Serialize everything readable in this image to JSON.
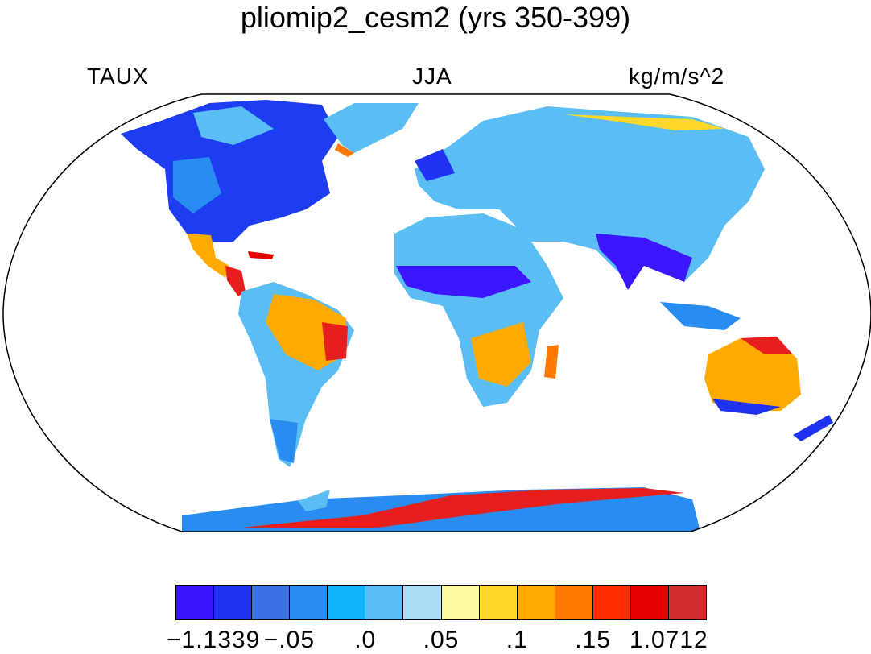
{
  "header": {
    "title": "pliomip2_cesm2 (yrs 350-399)",
    "left_label": "TAUX",
    "center_label": "JJA",
    "right_label": "kg/m/s^2"
  },
  "map": {
    "projection": "robinson",
    "land_only": true,
    "regions": [
      {
        "name": "north-america",
        "color": "#1e3cf0"
      },
      {
        "name": "greenland",
        "color": "#5abef5"
      },
      {
        "name": "central-america",
        "color": "#e61e1e"
      },
      {
        "name": "south-america",
        "color": "#ffaa00"
      },
      {
        "name": "europe-asia",
        "color": "#5abef5"
      },
      {
        "name": "africa",
        "color": "#5abef5"
      },
      {
        "name": "india-se-asia",
        "color": "#3c14ff"
      },
      {
        "name": "australia",
        "color": "#ffaa00"
      },
      {
        "name": "antarctica",
        "color": "#e61e1e"
      }
    ]
  },
  "colorbar": {
    "colors": [
      "#3a14ff",
      "#1e32f0",
      "#3c6ee6",
      "#288cf0",
      "#10b4f8",
      "#5abef5",
      "#aadcf5",
      "#fffaa0",
      "#ffd728",
      "#ffaa00",
      "#ff7800",
      "#ff2d00",
      "#e60000",
      "#d22d2d"
    ],
    "tick_labels": [
      "−1.1339",
      "−.05",
      ".0",
      ".05",
      ".1",
      ".15",
      "1.0712"
    ]
  }
}
